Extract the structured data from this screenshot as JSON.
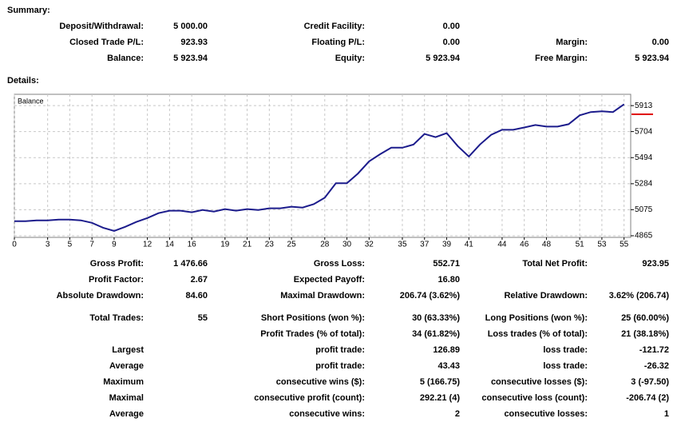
{
  "summary_title": "Summary:",
  "summary": [
    [
      [
        "Deposit/Withdrawal:",
        "5 000.00"
      ],
      [
        "Credit Facility:",
        "0.00"
      ],
      null
    ],
    [
      [
        "Closed Trade P/L:",
        "923.93"
      ],
      [
        "Floating P/L:",
        "0.00"
      ],
      [
        "Margin:",
        "0.00"
      ]
    ],
    [
      [
        "Balance:",
        "5 923.94"
      ],
      [
        "Equity:",
        "5 923.94"
      ],
      [
        "Free Margin:",
        "5 923.94"
      ]
    ]
  ],
  "details_title": "Details:",
  "chart_data": {
    "type": "line",
    "title": "Balance",
    "x": [
      0,
      1,
      2,
      3,
      4,
      5,
      6,
      7,
      8,
      9,
      10,
      11,
      12,
      13,
      14,
      15,
      16,
      17,
      18,
      19,
      20,
      21,
      22,
      23,
      24,
      25,
      26,
      27,
      28,
      29,
      30,
      31,
      32,
      33,
      34,
      35,
      36,
      37,
      38,
      39,
      40,
      41,
      42,
      43,
      44,
      45,
      46,
      47,
      48,
      49,
      50,
      51,
      52,
      53,
      54,
      55
    ],
    "series": [
      {
        "name": "Balance",
        "color": "#1c1c8c",
        "values": [
          4982,
          4982,
          4989,
          4989,
          4995,
          4995,
          4989,
          4969,
          4930,
          4904,
          4937,
          4976,
          5008,
          5047,
          5067,
          5067,
          5054,
          5073,
          5060,
          5080,
          5067,
          5080,
          5073,
          5086,
          5086,
          5099,
          5092,
          5119,
          5171,
          5288,
          5288,
          5366,
          5464,
          5522,
          5574,
          5574,
          5600,
          5685,
          5659,
          5692,
          5587,
          5503,
          5600,
          5678,
          5718,
          5718,
          5737,
          5757,
          5744,
          5744,
          5763,
          5835,
          5861,
          5867,
          5861,
          5924
        ]
      }
    ],
    "xlim": [
      0,
      55.6
    ],
    "ylim": [
      4852,
      6004
    ],
    "xticks": [
      0,
      3,
      5,
      7,
      9,
      12,
      14,
      16,
      19,
      21,
      23,
      25,
      28,
      30,
      32,
      35,
      37,
      39,
      41,
      44,
      46,
      48,
      51,
      53,
      55
    ],
    "yticks": [
      4865,
      5075,
      5284,
      5494,
      5704,
      5913
    ],
    "grid": true
  },
  "stats": [
    [
      [
        "Gross Profit:",
        "1 476.66"
      ],
      [
        "Gross Loss:",
        "552.71"
      ],
      [
        "Total Net Profit:",
        "923.95"
      ]
    ],
    [
      [
        "Profit Factor:",
        "2.67"
      ],
      [
        "Expected Payoff:",
        "16.80"
      ],
      null
    ],
    [
      [
        "Absolute Drawdown:",
        "84.60"
      ],
      [
        "Maximal Drawdown:",
        "206.74 (3.62%)"
      ],
      [
        "Relative Drawdown:",
        "3.62% (206.74)"
      ]
    ],
    [
      [
        "Total Trades:",
        "55"
      ],
      [
        "Short Positions (won %):",
        "30 (63.33%)"
      ],
      [
        "Long Positions (won %):",
        "25 (60.00%)"
      ]
    ],
    [
      null,
      [
        "Profit Trades (% of total):",
        "34 (61.82%)"
      ],
      [
        "Loss trades (% of total):",
        "21 (38.18%)"
      ]
    ],
    [
      [
        "Largest"
      ],
      [
        "profit trade:",
        "126.89"
      ],
      [
        "loss trade:",
        "-121.72"
      ]
    ],
    [
      [
        "Average"
      ],
      [
        "profit trade:",
        "43.43"
      ],
      [
        "loss trade:",
        "-26.32"
      ]
    ],
    [
      [
        "Maximum"
      ],
      [
        "consecutive wins ($):",
        "5 (166.75)"
      ],
      [
        "consecutive losses ($):",
        "3 (-97.50)"
      ]
    ],
    [
      [
        "Maximal"
      ],
      [
        "consecutive profit (count):",
        "292.21 (4)"
      ],
      [
        "consecutive loss (count):",
        "-206.74 (2)"
      ]
    ],
    [
      [
        "Average"
      ],
      [
        "consecutive wins:",
        "2"
      ],
      [
        "consecutive losses:",
        "1"
      ]
    ]
  ]
}
